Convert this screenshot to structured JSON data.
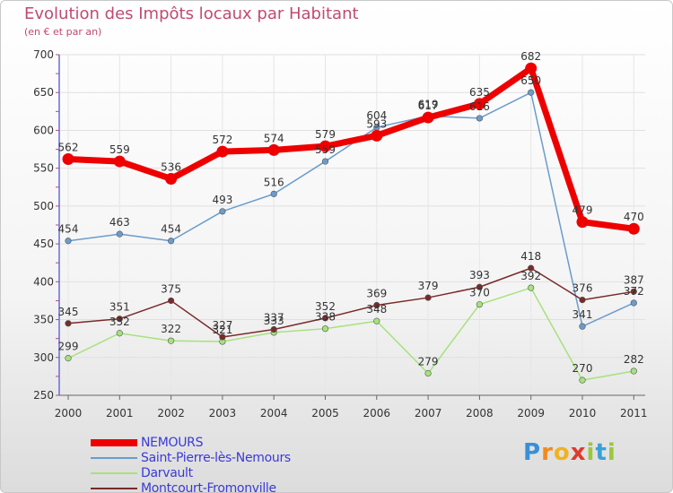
{
  "chart_data": {
    "type": "line",
    "title": "Evolution des Impôts locaux par Habitant",
    "subtitle": "(en € et par an)",
    "xlabel": "",
    "ylabel": "",
    "ylim": [
      250,
      700
    ],
    "yticks": [
      "250",
      "300",
      "350",
      "400",
      "450",
      "500",
      "550",
      "600",
      "650",
      "700"
    ],
    "categories": [
      "2000",
      "2001",
      "2002",
      "2003",
      "2004",
      "2005",
      "2006",
      "2007",
      "2008",
      "2009",
      "2010",
      "2011"
    ],
    "legend_position": "bottom-left",
    "series": [
      {
        "name": "NEMOURS",
        "color": "#ee0000",
        "emphasis": true,
        "values": [
          562,
          559,
          536,
          572,
          574,
          579,
          593,
          617,
          635,
          682,
          479,
          470
        ],
        "labels": [
          "562",
          "559",
          "536",
          "572",
          "574",
          "579",
          "593",
          "617",
          "635",
          "682",
          "479",
          "470"
        ]
      },
      {
        "name": "Saint-Pierre-lès-Nemours",
        "color": "#6a9ccc",
        "emphasis": false,
        "values": [
          454,
          463,
          454,
          493,
          516,
          559,
          604,
          619,
          616,
          650,
          341,
          372
        ],
        "labels": [
          "454",
          "463",
          "454",
          "493",
          "516",
          "559",
          "604",
          "619",
          "616",
          "650",
          "341",
          "372"
        ]
      },
      {
        "name": "Darvault",
        "color": "#a6e27c",
        "emphasis": false,
        "values": [
          299,
          332,
          322,
          321,
          333,
          338,
          348,
          279,
          370,
          392,
          270,
          282
        ],
        "labels": [
          "299",
          "332",
          "322",
          "321",
          "333",
          "338",
          "348",
          "279",
          "370",
          "392",
          "270",
          "282"
        ]
      },
      {
        "name": "Montcourt-Fromonville",
        "color": "#7a2a2a",
        "emphasis": false,
        "values": [
          345,
          351,
          375,
          327,
          337,
          352,
          369,
          379,
          393,
          418,
          376,
          387
        ],
        "labels": [
          "345",
          "351",
          "375",
          "327",
          "337",
          "352",
          "369",
          "379",
          "393",
          "418",
          "376",
          "387"
        ]
      }
    ]
  },
  "logo": {
    "letters": [
      "P",
      "r",
      "o",
      "x",
      "i",
      "t",
      "i"
    ],
    "colors": [
      "#3a8fd8",
      "#f28a1e",
      "#f2b21e",
      "#e03a2a",
      "#9ac83a",
      "#3aa0d8",
      "#9ac83a"
    ]
  }
}
